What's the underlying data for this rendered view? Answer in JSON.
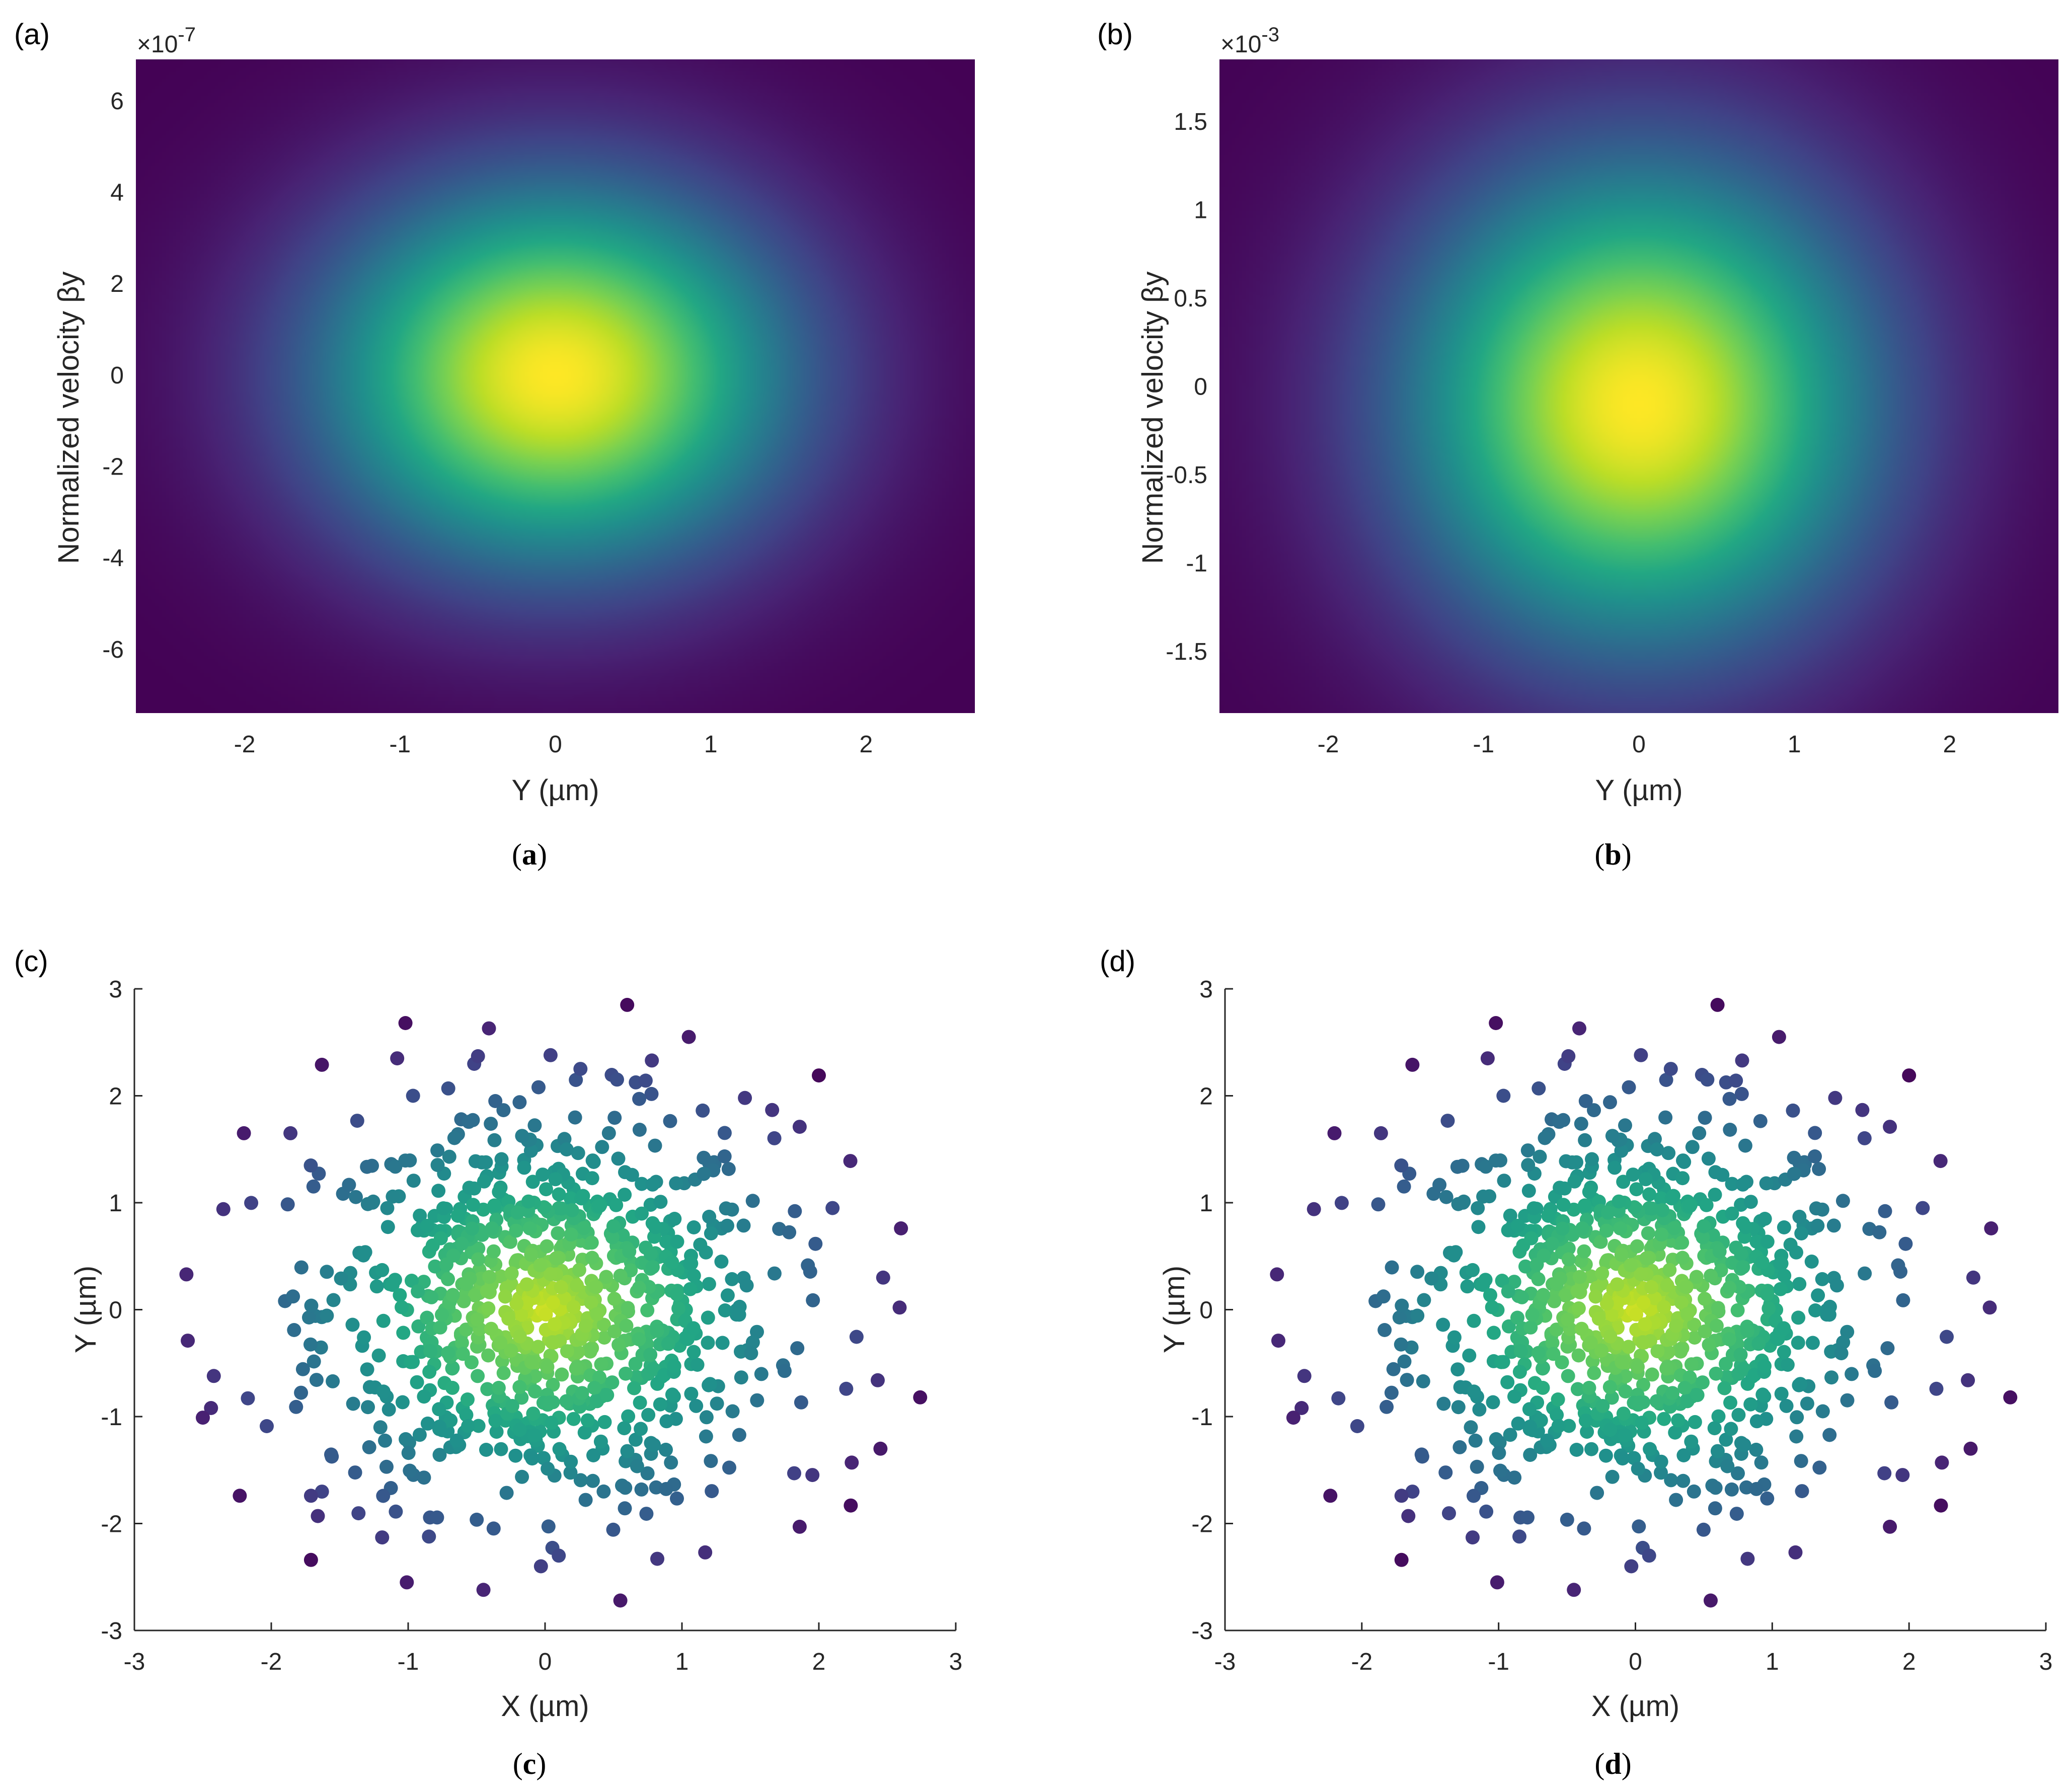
{
  "chart_data": [
    {
      "panel": "(a)",
      "caption_letter": "a",
      "type": "heatmap",
      "colormap": "viridis",
      "xlabel": "Y (µm)",
      "ylabel": "Normalized velocity βy",
      "exponent_label": "×10",
      "exponent_power": "-7",
      "xlim": [
        -2.7,
        2.7
      ],
      "ylim": [
        -7.4,
        6.9
      ],
      "xticks": [
        -2,
        -1,
        0,
        1,
        2
      ],
      "yticks": [
        -6,
        -4,
        -2,
        0,
        2,
        4,
        6
      ],
      "peak": [
        0.0,
        0.0
      ],
      "sigma": [
        1.05,
        2.9
      ]
    },
    {
      "panel": "(b)",
      "caption_letter": "b",
      "type": "heatmap",
      "colormap": "viridis",
      "xlabel": "Y (µm)",
      "ylabel": "Normalized velocity βy",
      "exponent_label": "×10",
      "exponent_power": "-3",
      "xlim": [
        -2.7,
        2.7
      ],
      "ylim": [
        -1.85,
        1.85
      ],
      "xticks": [
        -2,
        -1,
        0,
        1,
        2
      ],
      "yticks": [
        -1.5,
        -1,
        -0.5,
        0,
        0.5,
        1,
        1.5
      ],
      "peak": [
        0.0,
        -0.1
      ],
      "sigma": [
        1.05,
        0.95
      ]
    },
    {
      "panel": "(c)",
      "caption_letter": "c",
      "type": "scatter",
      "colormap": "viridis",
      "xlabel": "X (µm)",
      "ylabel": "Y (µm)",
      "xlim": [
        -3,
        3
      ],
      "ylim": [
        -3,
        3
      ],
      "xticks": [
        -3,
        -2,
        -1,
        0,
        1,
        2,
        3
      ],
      "yticks": [
        -3,
        -2,
        -1,
        0,
        1,
        2,
        3
      ],
      "points": [
        [
          0.6,
          2.85
        ],
        [
          -1.02,
          2.68
        ],
        [
          -0.41,
          2.63
        ],
        [
          1.05,
          2.55
        ],
        [
          -1.63,
          2.29
        ],
        [
          2.0,
          2.19
        ],
        [
          -1.08,
          2.35
        ],
        [
          -0.49,
          2.37
        ],
        [
          0.04,
          2.38
        ],
        [
          0.78,
          2.33
        ],
        [
          1.46,
          1.98
        ],
        [
          -2.2,
          1.65
        ],
        [
          -1.86,
          1.65
        ],
        [
          1.86,
          1.71
        ],
        [
          2.23,
          1.39
        ],
        [
          -2.35,
          0.94
        ],
        [
          2.1,
          0.95
        ],
        [
          2.6,
          0.76
        ],
        [
          -2.62,
          0.33
        ],
        [
          2.47,
          0.3
        ],
        [
          2.59,
          0.02
        ],
        [
          -2.61,
          -0.29
        ],
        [
          -2.42,
          -0.62
        ],
        [
          -2.44,
          -0.92
        ],
        [
          -2.5,
          -1.01
        ],
        [
          2.2,
          -0.74
        ],
        [
          2.43,
          -0.66
        ],
        [
          2.74,
          -0.82
        ],
        [
          2.45,
          -1.3
        ],
        [
          2.24,
          -1.43
        ],
        [
          -2.23,
          -1.74
        ],
        [
          -1.71,
          -1.74
        ],
        [
          -1.66,
          -1.93
        ],
        [
          1.82,
          -1.53
        ],
        [
          1.86,
          -2.03
        ],
        [
          -1.71,
          -2.34
        ],
        [
          -1.19,
          -2.13
        ],
        [
          -1.01,
          -2.55
        ],
        [
          -0.45,
          -2.62
        ],
        [
          0.55,
          -2.72
        ],
        [
          0.82,
          -2.33
        ],
        [
          1.17,
          -2.27
        ],
        [
          0.1,
          -2.3
        ],
        [
          -0.03,
          -2.4
        ]
      ],
      "seed": 12345,
      "cluster_count": 900,
      "cluster_sigma": [
        0.82,
        0.92
      ]
    },
    {
      "panel": "(d)",
      "caption_letter": "d",
      "type": "scatter",
      "colormap": "viridis",
      "xlabel": "X (µm)",
      "ylabel": "Y (µm)",
      "xlim": [
        -3,
        3
      ],
      "ylim": [
        -3,
        3
      ],
      "xticks": [
        -3,
        -2,
        -1,
        0,
        1,
        2,
        3
      ],
      "yticks": [
        -3,
        -2,
        -1,
        0,
        1,
        2,
        3
      ],
      "points": [
        [
          0.6,
          2.85
        ],
        [
          -1.02,
          2.68
        ],
        [
          -0.41,
          2.63
        ],
        [
          1.05,
          2.55
        ],
        [
          -1.63,
          2.29
        ],
        [
          2.0,
          2.19
        ],
        [
          -1.08,
          2.35
        ],
        [
          -0.49,
          2.37
        ],
        [
          0.04,
          2.38
        ],
        [
          0.78,
          2.33
        ],
        [
          1.46,
          1.98
        ],
        [
          -2.2,
          1.65
        ],
        [
          -1.86,
          1.65
        ],
        [
          1.86,
          1.71
        ],
        [
          2.23,
          1.39
        ],
        [
          -2.35,
          0.94
        ],
        [
          2.1,
          0.95
        ],
        [
          2.6,
          0.76
        ],
        [
          -2.62,
          0.33
        ],
        [
          2.47,
          0.3
        ],
        [
          2.59,
          0.02
        ],
        [
          -2.61,
          -0.29
        ],
        [
          -2.42,
          -0.62
        ],
        [
          -2.44,
          -0.92
        ],
        [
          -2.5,
          -1.01
        ],
        [
          2.2,
          -0.74
        ],
        [
          2.43,
          -0.66
        ],
        [
          2.74,
          -0.82
        ],
        [
          2.45,
          -1.3
        ],
        [
          2.24,
          -1.43
        ],
        [
          -2.23,
          -1.74
        ],
        [
          -1.71,
          -1.74
        ],
        [
          -1.66,
          -1.93
        ],
        [
          1.82,
          -1.53
        ],
        [
          1.86,
          -2.03
        ],
        [
          -1.71,
          -2.34
        ],
        [
          -1.19,
          -2.13
        ],
        [
          -1.01,
          -2.55
        ],
        [
          -0.45,
          -2.62
        ],
        [
          0.55,
          -2.72
        ],
        [
          0.82,
          -2.33
        ],
        [
          1.17,
          -2.27
        ],
        [
          0.1,
          -2.3
        ],
        [
          -0.03,
          -2.4
        ]
      ],
      "seed": 12345,
      "cluster_count": 900,
      "cluster_sigma": [
        0.82,
        0.92
      ]
    }
  ]
}
